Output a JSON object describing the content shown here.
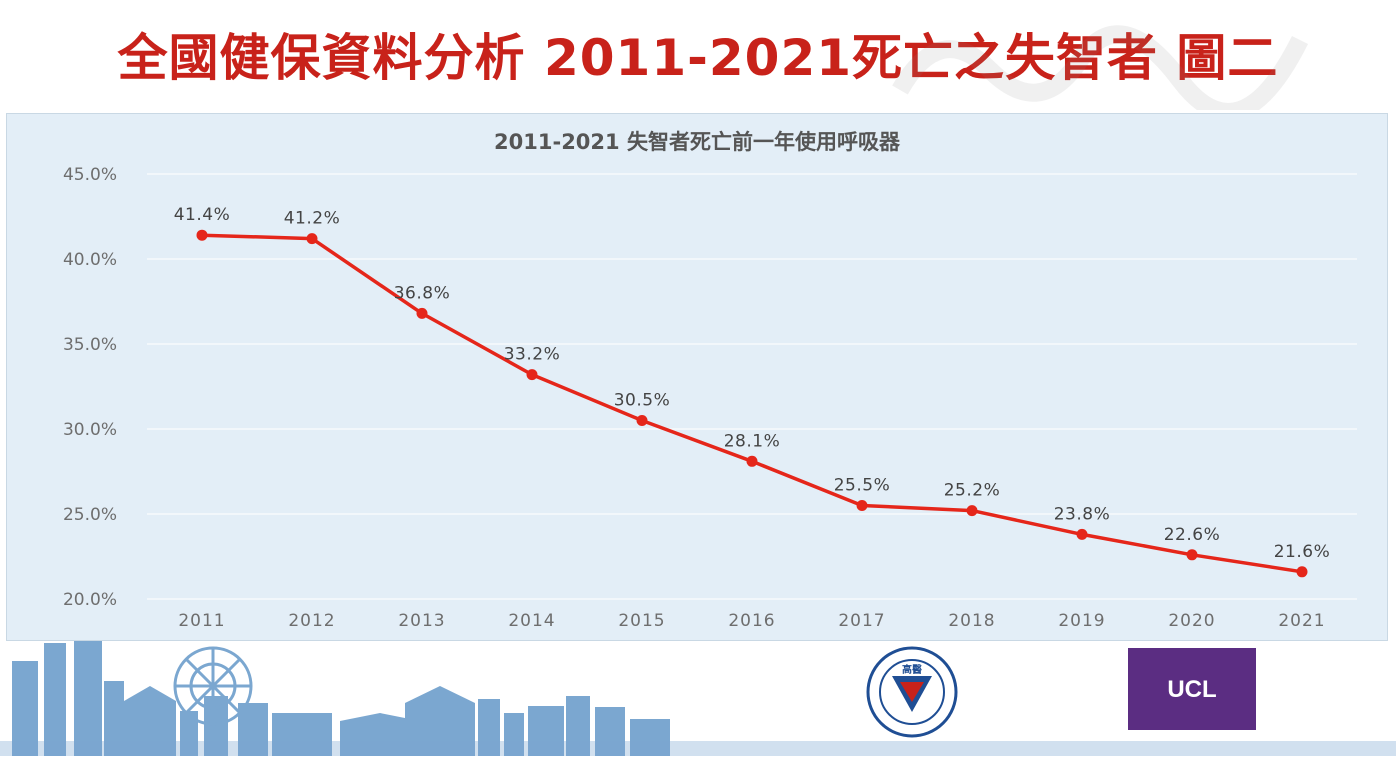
{
  "slide": {
    "title": "全國健保資料分析 2011-2021死亡之失智者 圖二"
  },
  "logos": {
    "ucl_text": "UCL",
    "kmu_text": "高醫",
    "ucl_color": "#5b2d82",
    "kmu_color": "#1f4e94"
  },
  "colors": {
    "title": "#c8221a",
    "line": "#e5261a",
    "panel": "#e3eef7",
    "skyline": "#7ba7d0"
  },
  "chart_data": {
    "type": "line",
    "title": "2011-2021 失智者死亡前一年使用呼吸器",
    "categories": [
      "2011",
      "2012",
      "2013",
      "2014",
      "2015",
      "2016",
      "2017",
      "2018",
      "2019",
      "2020",
      "2021"
    ],
    "values": [
      41.4,
      41.2,
      36.8,
      33.2,
      30.5,
      28.1,
      25.5,
      25.2,
      23.8,
      22.6,
      21.6
    ],
    "labels": [
      "41.4%",
      "41.2%",
      "36.8%",
      "33.2%",
      "30.5%",
      "28.1%",
      "25.5%",
      "25.2%",
      "23.8%",
      "22.6%",
      "21.6%"
    ],
    "yticks": [
      "20.0%",
      "25.0%",
      "30.0%",
      "35.0%",
      "40.0%",
      "45.0%"
    ],
    "ylim": [
      20,
      45
    ],
    "grid": true,
    "legend": "none"
  }
}
